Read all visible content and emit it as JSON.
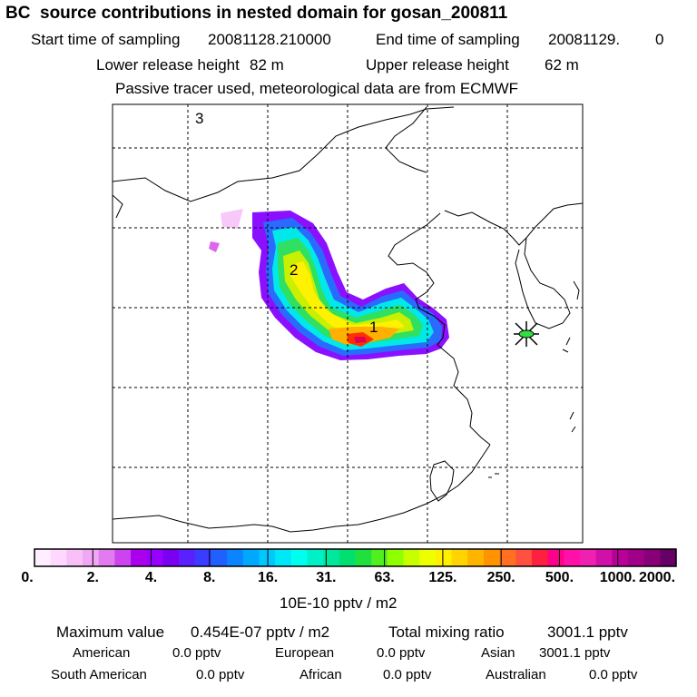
{
  "title": "BC  source contributions in nested domain for gosan_200811",
  "start_label": "Start time of sampling",
  "start_value": "20081128.210000",
  "end_label": "End time of sampling",
  "end_value": "20081129.",
  "end_extra": "0",
  "lower_label": "Lower release height",
  "lower_value": "82 m",
  "upper_label": "Upper release height",
  "upper_value": "62 m",
  "tracer_line": "Passive tracer used, meteorological data are from ECMWF",
  "map": {
    "labels": [
      "3",
      "2",
      "1"
    ],
    "receptor_icon": "star-marker-icon"
  },
  "colorbar": {
    "unit": "10E-10 pptv / m2",
    "tick_labels": [
      "0.",
      "2.",
      "4.",
      "8.",
      "16.",
      "31.",
      "63.",
      "125.",
      "250.",
      "500.",
      "1000.",
      "2000."
    ],
    "colors": [
      "#ffeeff",
      "#ffd8ff",
      "#f8bff8",
      "#f0a8f4",
      "#e07cf0",
      "#cc44ee",
      "#aa00ee",
      "#9900ff",
      "#7a00f0",
      "#5a20ff",
      "#3a3cff",
      "#2060ff",
      "#0a84ff",
      "#00a8ff",
      "#00c8ff",
      "#00e8f8",
      "#00ffee",
      "#00f0c8",
      "#00e8a0",
      "#00e070",
      "#20e040",
      "#50f020",
      "#90ff00",
      "#c8ff00",
      "#eeff00",
      "#fff000",
      "#ffd400",
      "#ffb400",
      "#ff9400",
      "#ff7020",
      "#ff5040",
      "#ff2040",
      "#ff0088",
      "#ff10a8",
      "#f020b0",
      "#d010a8",
      "#b80098",
      "#a00088",
      "#880078",
      "#660066"
    ]
  },
  "stats": {
    "max_label": "Maximum value",
    "max_value": "0.454E-07 pptv / m2",
    "total_label": "Total mixing ratio",
    "total_value": "3001.1 pptv",
    "regions": [
      {
        "name": "American",
        "value": "0.0 pptv"
      },
      {
        "name": "European",
        "value": "0.0 pptv"
      },
      {
        "name": "Asian",
        "value": "3001.1 pptv"
      },
      {
        "name": "South American",
        "value": "0.0 pptv"
      },
      {
        "name": "African",
        "value": "0.0 pptv"
      },
      {
        "name": "Australian",
        "value": "0.0 pptv"
      }
    ]
  }
}
